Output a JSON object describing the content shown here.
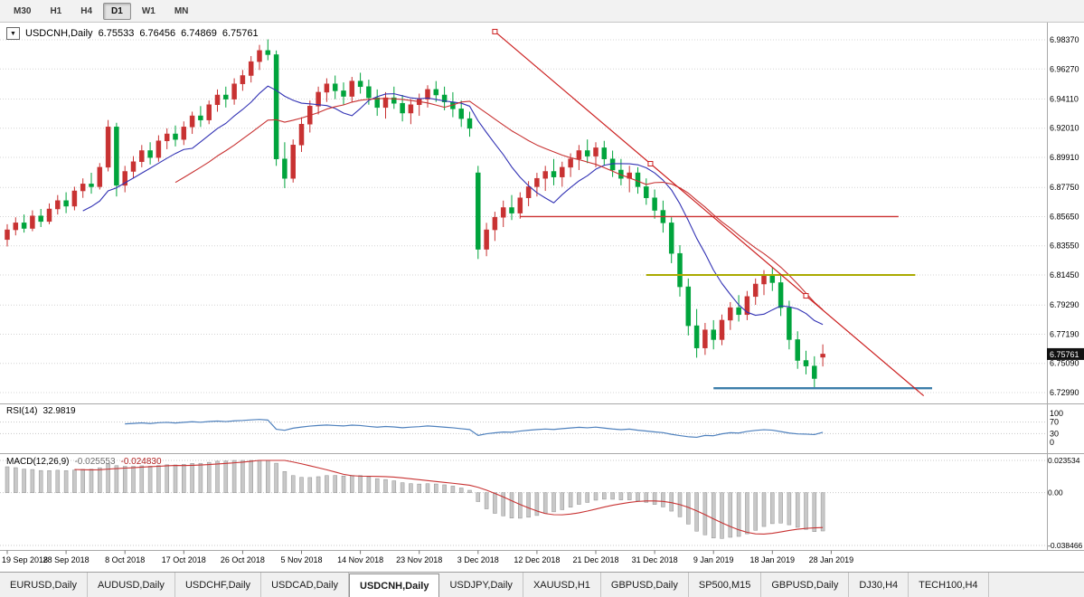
{
  "icons": {
    "dropdown": "▼"
  },
  "toolbar": {
    "timeframes": [
      {
        "label": "M30",
        "active": false
      },
      {
        "label": "H1",
        "active": false
      },
      {
        "label": "H4",
        "active": false
      },
      {
        "label": "D1",
        "active": true
      },
      {
        "label": "W1",
        "active": false
      },
      {
        "label": "MN",
        "active": false
      }
    ]
  },
  "tabs": [
    {
      "label": "EURUSD,Daily",
      "active": false
    },
    {
      "label": "AUDUSD,Daily",
      "active": false
    },
    {
      "label": "USDCHF,Daily",
      "active": false
    },
    {
      "label": "USDCAD,Daily",
      "active": false
    },
    {
      "label": "USDCNH,Daily",
      "active": true
    },
    {
      "label": "USDJPY,Daily",
      "active": false
    },
    {
      "label": "XAUUSD,H1",
      "active": false
    },
    {
      "label": "GBPUSD,Daily",
      "active": false
    },
    {
      "label": "SP500,M15",
      "active": false
    },
    {
      "label": "GBPUSD,Daily",
      "active": false
    },
    {
      "label": "DJ30,H4",
      "active": false
    },
    {
      "label": "TECH100,H4",
      "active": false
    }
  ],
  "chart_data": {
    "type": "candlestick",
    "title": "USDCNH,Daily",
    "open": "6.75533",
    "high": "6.76456",
    "low": "6.74869",
    "close": "6.75761",
    "current_price": "6.75761",
    "bull_color": "#C83232",
    "bear_color": "#00A43C",
    "price_axis": [
      "6.98370",
      "6.96270",
      "6.94110",
      "6.92010",
      "6.89910",
      "6.87750",
      "6.85650",
      "6.83550",
      "6.81450",
      "6.79290",
      "6.77190",
      "6.75090",
      "6.72990"
    ],
    "x_tick_labels": [
      "19 Sep 2018",
      "28 Sep 2018",
      "8 Oct 2018",
      "17 Oct 2018",
      "26 Oct 2018",
      "5 Nov 2018",
      "14 Nov 2018",
      "23 Nov 2018",
      "3 Dec 2018",
      "12 Dec 2018",
      "21 Dec 2018",
      "31 Dec 2018",
      "9 Jan 2019",
      "18 Jan 2019",
      "28 Jan 2019"
    ],
    "bars_per_tick": 7,
    "candles": [
      [
        6.84,
        6.851,
        6.835,
        6.847
      ],
      [
        6.847,
        6.856,
        6.843,
        6.852
      ],
      [
        6.852,
        6.858,
        6.845,
        6.848
      ],
      [
        6.848,
        6.861,
        6.846,
        6.857
      ],
      [
        6.857,
        6.862,
        6.849,
        6.853
      ],
      [
        6.853,
        6.866,
        6.851,
        6.862
      ],
      [
        6.862,
        6.872,
        6.858,
        6.868
      ],
      [
        6.868,
        6.874,
        6.859,
        6.864
      ],
      [
        6.864,
        6.878,
        6.861,
        6.875
      ],
      [
        6.875,
        6.884,
        6.87,
        6.88
      ],
      [
        6.88,
        6.888,
        6.873,
        6.878
      ],
      [
        6.878,
        6.895,
        6.876,
        6.892
      ],
      [
        6.892,
        6.926,
        6.889,
        6.921
      ],
      [
        6.921,
        6.924,
        6.871,
        6.879
      ],
      [
        6.879,
        6.893,
        6.874,
        6.889
      ],
      [
        6.889,
        6.9,
        6.884,
        6.896
      ],
      [
        6.896,
        6.908,
        6.892,
        6.904
      ],
      [
        6.904,
        6.91,
        6.894,
        6.899
      ],
      [
        6.899,
        6.915,
        6.896,
        6.911
      ],
      [
        6.911,
        6.92,
        6.905,
        6.916
      ],
      [
        6.916,
        6.922,
        6.907,
        6.912
      ],
      [
        6.912,
        6.925,
        6.908,
        6.921
      ],
      [
        6.921,
        6.932,
        6.916,
        6.929
      ],
      [
        6.929,
        6.936,
        6.921,
        6.926
      ],
      [
        6.926,
        6.94,
        6.923,
        6.937
      ],
      [
        6.937,
        6.948,
        6.932,
        6.944
      ],
      [
        6.944,
        6.95,
        6.935,
        6.941
      ],
      [
        6.941,
        6.956,
        6.937,
        6.952
      ],
      [
        6.952,
        6.962,
        6.947,
        6.958
      ],
      [
        6.958,
        6.972,
        6.953,
        6.968
      ],
      [
        6.968,
        6.98,
        6.962,
        6.976
      ],
      [
        6.976,
        6.984,
        6.969,
        6.973
      ],
      [
        6.973,
        6.976,
        6.893,
        6.898
      ],
      [
        6.898,
        6.91,
        6.877,
        6.884
      ],
      [
        6.884,
        6.912,
        6.881,
        6.908
      ],
      [
        6.908,
        6.928,
        6.903,
        6.923
      ],
      [
        6.923,
        6.94,
        6.917,
        6.936
      ],
      [
        6.936,
        6.95,
        6.93,
        6.946
      ],
      [
        6.946,
        6.956,
        6.939,
        6.952
      ],
      [
        6.952,
        6.958,
        6.941,
        6.947
      ],
      [
        6.947,
        6.953,
        6.937,
        6.943
      ],
      [
        6.943,
        6.957,
        6.939,
        6.954
      ],
      [
        6.954,
        6.96,
        6.945,
        6.95
      ],
      [
        6.95,
        6.955,
        6.937,
        6.942
      ],
      [
        6.942,
        6.948,
        6.929,
        6.935
      ],
      [
        6.935,
        6.946,
        6.927,
        6.942
      ],
      [
        6.942,
        6.95,
        6.934,
        6.938
      ],
      [
        6.938,
        6.944,
        6.925,
        6.931
      ],
      [
        6.931,
        6.941,
        6.923,
        6.937
      ],
      [
        6.937,
        6.945,
        6.929,
        6.941
      ],
      [
        6.941,
        6.951,
        6.935,
        6.948
      ],
      [
        6.948,
        6.954,
        6.939,
        6.944
      ],
      [
        6.944,
        6.95,
        6.933,
        6.939
      ],
      [
        6.939,
        6.946,
        6.928,
        6.934
      ],
      [
        6.934,
        6.94,
        6.921,
        6.927
      ],
      [
        6.927,
        6.932,
        6.914,
        6.92
      ],
      [
        6.888,
        6.893,
        6.826,
        6.833
      ],
      [
        6.833,
        6.852,
        6.828,
        6.847
      ],
      [
        6.847,
        6.86,
        6.839,
        6.856
      ],
      [
        6.856,
        6.868,
        6.849,
        6.863
      ],
      [
        6.863,
        6.872,
        6.854,
        6.859
      ],
      [
        6.859,
        6.874,
        6.855,
        6.87
      ],
      [
        6.87,
        6.882,
        6.864,
        6.878
      ],
      [
        6.878,
        6.888,
        6.871,
        6.884
      ],
      [
        6.884,
        6.893,
        6.875,
        6.889
      ],
      [
        6.889,
        6.898,
        6.879,
        6.885
      ],
      [
        6.885,
        6.896,
        6.878,
        6.892
      ],
      [
        6.892,
        6.902,
        6.885,
        6.898
      ],
      [
        6.898,
        6.908,
        6.89,
        6.904
      ],
      [
        6.904,
        6.912,
        6.895,
        6.9
      ],
      [
        6.9,
        6.91,
        6.892,
        6.906
      ],
      [
        6.906,
        6.911,
        6.893,
        6.898
      ],
      [
        6.898,
        6.904,
        6.885,
        6.89
      ],
      [
        6.89,
        6.898,
        6.879,
        6.884
      ],
      [
        6.884,
        6.893,
        6.874,
        6.888
      ],
      [
        6.888,
        6.892,
        6.873,
        6.878
      ],
      [
        6.878,
        6.884,
        6.865,
        6.87
      ],
      [
        6.87,
        6.876,
        6.855,
        6.861
      ],
      [
        6.861,
        6.868,
        6.845,
        6.852
      ],
      [
        6.852,
        6.856,
        6.823,
        6.83
      ],
      [
        6.83,
        6.836,
        6.799,
        6.806
      ],
      [
        6.806,
        6.812,
        6.771,
        6.778
      ],
      [
        6.778,
        6.79,
        6.755,
        6.762
      ],
      [
        6.762,
        6.78,
        6.757,
        6.775
      ],
      [
        6.775,
        6.782,
        6.761,
        6.768
      ],
      [
        6.768,
        6.786,
        6.764,
        6.782
      ],
      [
        6.782,
        6.795,
        6.775,
        6.791
      ],
      [
        6.791,
        6.8,
        6.781,
        6.786
      ],
      [
        6.786,
        6.803,
        6.782,
        6.799
      ],
      [
        6.799,
        6.812,
        6.793,
        6.808
      ],
      [
        6.808,
        6.818,
        6.8,
        6.814
      ],
      [
        6.814,
        6.82,
        6.803,
        6.809
      ],
      [
        6.809,
        6.815,
        6.785,
        6.791
      ],
      [
        6.791,
        6.796,
        6.761,
        6.768
      ],
      [
        6.768,
        6.774,
        6.747,
        6.753
      ],
      [
        6.753,
        6.76,
        6.743,
        6.749
      ],
      [
        6.749,
        6.756,
        6.733,
        6.74
      ],
      [
        6.75533,
        6.76456,
        6.74869,
        6.75761
      ]
    ],
    "overlays": {
      "ma_fast": {
        "type": "sma",
        "period": 10,
        "color": "#3232B4"
      },
      "ma_slow": {
        "type": "sma",
        "period": 21,
        "color": "#C83232"
      },
      "trendline": {
        "bar1": 58,
        "price1": 6.9896,
        "bar2": 95,
        "price2": 6.7995,
        "ray_to_bar": 109,
        "color": "#CC2020",
        "selected": true
      },
      "resistance_line": {
        "price": 6.8565,
        "bar_start": 61,
        "bar_end": 106,
        "color": "#CC3030",
        "width": 1.4
      },
      "support_line_yellow": {
        "price": 6.8145,
        "bar_start": 76,
        "bar_end": 108,
        "color": "#AAAA00",
        "width": 2
      },
      "support_line_blue": {
        "price": 6.733,
        "bar_start": 84,
        "bar_end": 110,
        "color": "#3D7EAA",
        "width": 2.4
      }
    },
    "indicators": {
      "rsi": {
        "label": "RSI(14)",
        "value": "32.9819",
        "period": 14,
        "axis": [
          "100",
          "70",
          "30",
          "0"
        ],
        "levels": [
          70,
          30
        ],
        "color": "#4F81BD"
      },
      "macd": {
        "label": "MACD(12,26,9)",
        "value": "-0.025553",
        "signal_value": "-0.024830",
        "fast": 12,
        "slow": 26,
        "signal": 9,
        "axis": [
          "0.023534",
          "0.00",
          "-0.038466"
        ],
        "histogram_color": "#C8C8C8",
        "signal_color": "#C83232"
      }
    }
  }
}
